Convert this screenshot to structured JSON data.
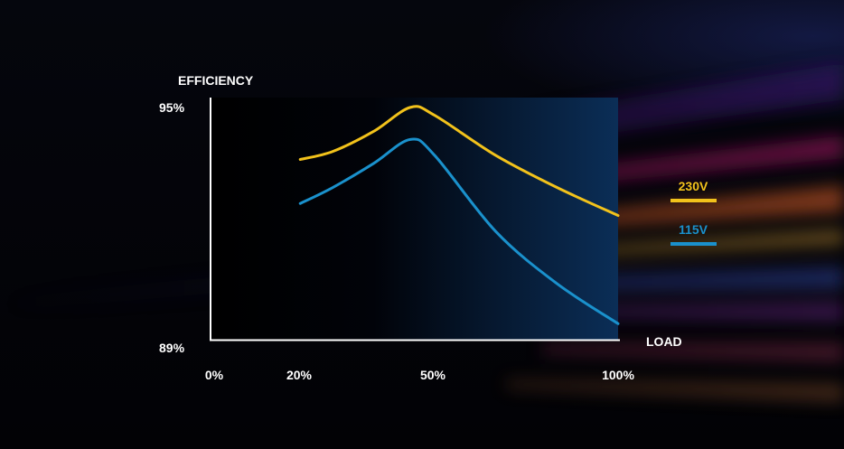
{
  "chart_data": {
    "type": "line",
    "ylabel": "EFFICIENCY",
    "xlabel": "LOAD",
    "x_unit": "%",
    "y_unit": "%",
    "xlim": [
      0,
      100
    ],
    "ylim": [
      89,
      95
    ],
    "x_tick_labels": [
      "0%",
      "20%",
      "50%",
      "100%"
    ],
    "x_ticks": [
      0,
      20,
      50,
      100
    ],
    "y_tick_labels": [
      "95%",
      "89%"
    ],
    "y_ticks": [
      95,
      89
    ],
    "grid": false,
    "legend_position": "right",
    "series": [
      {
        "name": "230V",
        "color": "#f2c21b",
        "points": [
          [
            22,
            93.5
          ],
          [
            30,
            93.7
          ],
          [
            40,
            94.2
          ],
          [
            49,
            94.8
          ],
          [
            55,
            94.6
          ],
          [
            70,
            93.6
          ],
          [
            85,
            92.8
          ],
          [
            100,
            92.1
          ]
        ]
      },
      {
        "name": "115V",
        "color": "#1a91cc",
        "points": [
          [
            22,
            92.4
          ],
          [
            30,
            92.8
          ],
          [
            40,
            93.4
          ],
          [
            49,
            94.0
          ],
          [
            55,
            93.6
          ],
          [
            70,
            91.7
          ],
          [
            85,
            90.4
          ],
          [
            100,
            89.4
          ]
        ]
      }
    ]
  }
}
